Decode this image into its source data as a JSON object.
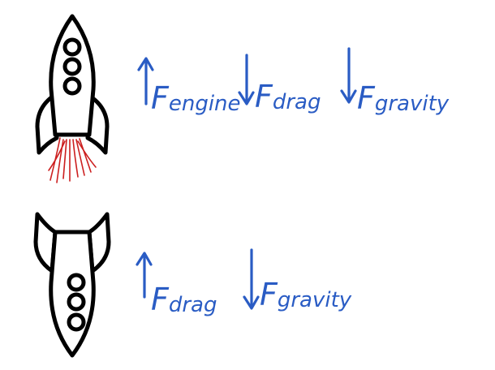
{
  "scene": {
    "upper": {
      "rocket": {
        "icon": "rocket-icon",
        "orientation": "up",
        "flame": true,
        "flame_color": "#cc1f1f"
      },
      "forces": [
        {
          "direction": "up",
          "letter": "F",
          "subscript": "engine"
        },
        {
          "direction": "down",
          "letter": "F",
          "subscript": "drag"
        },
        {
          "direction": "down",
          "letter": "F",
          "subscript": "gravity"
        }
      ]
    },
    "lower": {
      "rocket": {
        "icon": "rocket-icon",
        "orientation": "down",
        "flame": false
      },
      "forces": [
        {
          "direction": "up",
          "letter": "F",
          "subscript": "drag"
        },
        {
          "direction": "down",
          "letter": "F",
          "subscript": "gravity"
        }
      ]
    }
  },
  "colors": {
    "ink": "#2a5cc4",
    "outline": "#000000",
    "flame": "#cc1f1f"
  }
}
